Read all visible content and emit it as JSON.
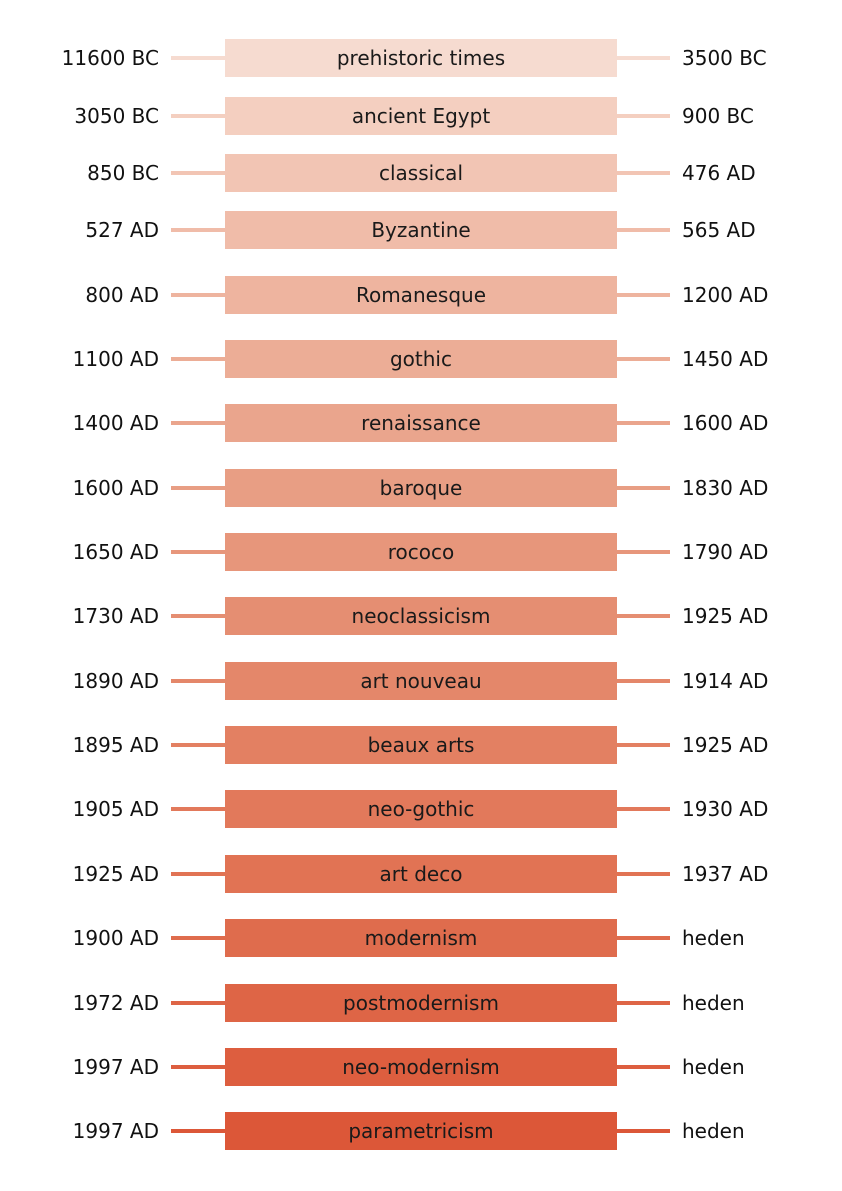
{
  "periods": [
    {
      "start": "11600 BC",
      "name": "prehistoric times",
      "end": "3500 BC",
      "color": "#f6dbd0"
    },
    {
      "start": "3050 BC",
      "name": "ancient Egypt",
      "end": "900 BC",
      "color": "#f4cfc0"
    },
    {
      "start": "850 BC",
      "name": "classical",
      "end": "476 AD",
      "color": "#f2c5b4"
    },
    {
      "start": "527 AD",
      "name": "Byzantine",
      "end": "565 AD",
      "color": "#f0bca9"
    },
    {
      "start": "800 AD",
      "name": "Romanesque",
      "end": "1200 AD",
      "color": "#eeb49f"
    },
    {
      "start": "1100 AD",
      "name": "gothic",
      "end": "1450 AD",
      "color": "#ecad96"
    },
    {
      "start": "1400 AD",
      "name": "renaissance",
      "end": "1600 AD",
      "color": "#eaa58d"
    },
    {
      "start": "1600 AD",
      "name": "baroque",
      "end": "1830 AD",
      "color": "#e89e84"
    },
    {
      "start": "1650 AD",
      "name": "rococo",
      "end": "1790 AD",
      "color": "#e7967b"
    },
    {
      "start": "1730 AD",
      "name": "neoclassicism",
      "end": "1925 AD",
      "color": "#e58e72"
    },
    {
      "start": "1890 AD",
      "name": "art nouveau",
      "end": "1914 AD",
      "color": "#e4876a"
    },
    {
      "start": "1895 AD",
      "name": "beaux arts",
      "end": "1925 AD",
      "color": "#e38062"
    },
    {
      "start": "1905 AD",
      "name": "neo-gothic",
      "end": "1930 AD",
      "color": "#e2795b"
    },
    {
      "start": "1925 AD",
      "name": "art deco",
      "end": "1937 AD",
      "color": "#e17354"
    },
    {
      "start": "1900 AD",
      "name": "modernism",
      "end": "heden",
      "color": "#df6c4d"
    },
    {
      "start": "1972 AD",
      "name": "postmodernism",
      "end": "heden",
      "color": "#de6546"
    },
    {
      "start": "1997 AD",
      "name": "neo-modernism",
      "end": "heden",
      "color": "#dd5e3f"
    },
    {
      "start": "1997 AD",
      "name": "parametricism",
      "end": "heden",
      "color": "#dc5738"
    }
  ]
}
